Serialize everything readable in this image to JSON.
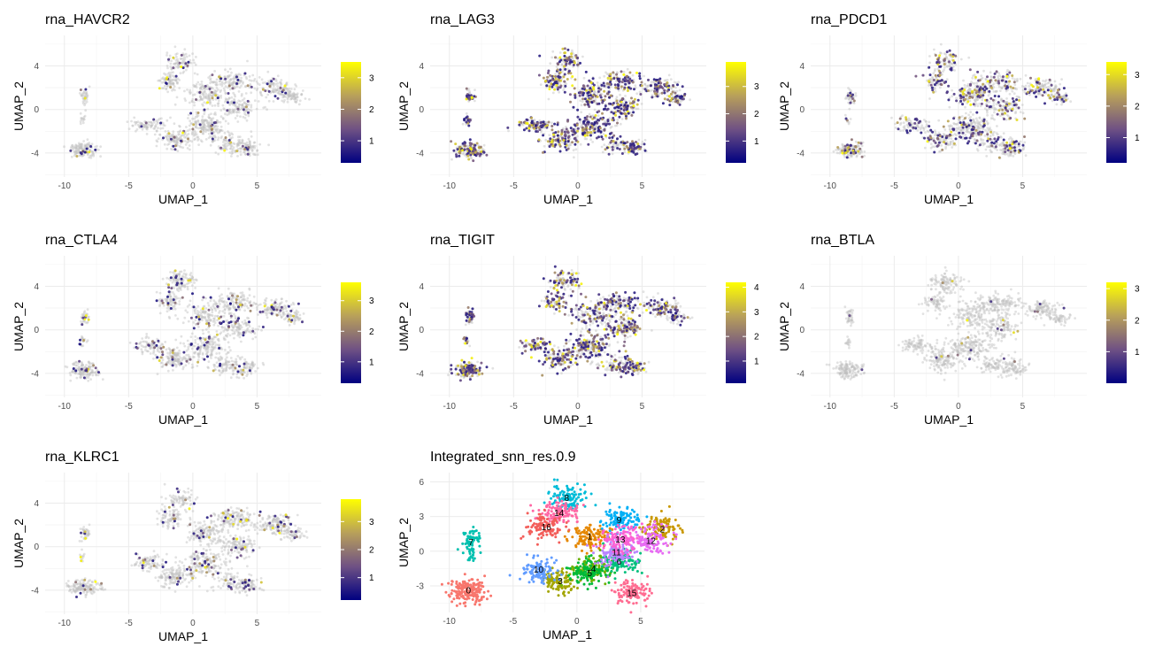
{
  "chart_data": [
    {
      "type": "scatter",
      "title": "rna_HAVCR2",
      "xlabel": "UMAP_1",
      "ylabel": "UMAP_2",
      "xlim": [
        -11.5,
        10
      ],
      "ylim": [
        -6.2,
        6.8
      ],
      "xticks": [
        -10,
        -5,
        0,
        5
      ],
      "yticks": [
        -4,
        0,
        4
      ],
      "grid": true,
      "colorbar": {
        "min": 0.3,
        "max": 3.5,
        "ticks": [
          1,
          2,
          3
        ],
        "colors": [
          "#000080",
          "#6f5184",
          "#b8a05a",
          "#ffff00"
        ]
      },
      "expression": {
        "fraction": 0.08,
        "low_color": "#bebebe"
      }
    },
    {
      "type": "scatter",
      "title": "rna_LAG3",
      "xlabel": "UMAP_1",
      "ylabel": "UMAP_2",
      "xlim": [
        -11.5,
        10
      ],
      "ylim": [
        -6.2,
        6.8
      ],
      "xticks": [
        -10,
        -5,
        0,
        5
      ],
      "yticks": [
        -4,
        0,
        4
      ],
      "grid": true,
      "colorbar": {
        "min": 0.2,
        "max": 3.9,
        "ticks": [
          1,
          2,
          3
        ],
        "colors": [
          "#000080",
          "#6f5184",
          "#b8a05a",
          "#ffff00"
        ]
      },
      "expression": {
        "fraction": 0.55,
        "low_color": "#bebebe"
      }
    },
    {
      "type": "scatter",
      "title": "rna_PDCD1",
      "xlabel": "UMAP_1",
      "ylabel": "UMAP_2",
      "xlim": [
        -11.5,
        10
      ],
      "ylim": [
        -6.2,
        6.8
      ],
      "xticks": [
        -10,
        -5,
        0,
        5
      ],
      "yticks": [
        -4,
        0,
        4
      ],
      "grid": true,
      "colorbar": {
        "min": 0.2,
        "max": 3.4,
        "ticks": [
          1,
          2,
          3
        ],
        "colors": [
          "#000080",
          "#6f5184",
          "#b8a05a",
          "#ffff00"
        ]
      },
      "expression": {
        "fraction": 0.28,
        "low_color": "#bebebe"
      }
    },
    {
      "type": "scatter",
      "title": "rna_CTLA4",
      "xlabel": "UMAP_1",
      "ylabel": "UMAP_2",
      "xlim": [
        -11.5,
        10
      ],
      "ylim": [
        -6.2,
        6.8
      ],
      "xticks": [
        -10,
        -5,
        0,
        5
      ],
      "yticks": [
        -4,
        0,
        4
      ],
      "grid": true,
      "colorbar": {
        "min": 0.3,
        "max": 3.6,
        "ticks": [
          1,
          2,
          3
        ],
        "colors": [
          "#000080",
          "#6f5184",
          "#b8a05a",
          "#ffff00"
        ]
      },
      "expression": {
        "fraction": 0.12,
        "low_color": "#bebebe"
      }
    },
    {
      "type": "scatter",
      "title": "rna_TIGIT",
      "xlabel": "UMAP_1",
      "ylabel": "UMAP_2",
      "xlim": [
        -11.5,
        10
      ],
      "ylim": [
        -6.2,
        6.8
      ],
      "xticks": [
        -10,
        -5,
        0,
        5
      ],
      "yticks": [
        -4,
        0,
        4
      ],
      "grid": true,
      "colorbar": {
        "min": 0.1,
        "max": 4.2,
        "ticks": [
          1,
          2,
          3,
          4
        ],
        "colors": [
          "#000080",
          "#6f5184",
          "#b8a05a",
          "#ffff00"
        ]
      },
      "expression": {
        "fraction": 0.5,
        "low_color": "#bebebe"
      }
    },
    {
      "type": "scatter",
      "title": "rna_BTLA",
      "xlabel": "UMAP_1",
      "ylabel": "UMAP_2",
      "xlim": [
        -11.5,
        10
      ],
      "ylim": [
        -6.2,
        6.8
      ],
      "xticks": [
        -10,
        -5,
        0,
        5
      ],
      "yticks": [
        -4,
        0,
        4
      ],
      "grid": true,
      "colorbar": {
        "min": 0.0,
        "max": 3.2,
        "ticks": [
          1,
          2,
          3
        ],
        "colors": [
          "#000080",
          "#6f5184",
          "#b8a05a",
          "#ffff00"
        ]
      },
      "expression": {
        "fraction": 0.02,
        "low_color": "#bebebe"
      }
    },
    {
      "type": "scatter",
      "title": "rna_KLRC1",
      "xlabel": "UMAP_1",
      "ylabel": "UMAP_2",
      "xlim": [
        -11.5,
        10
      ],
      "ylim": [
        -6.2,
        6.8
      ],
      "xticks": [
        -10,
        -5,
        0,
        5
      ],
      "yticks": [
        -4,
        0,
        4
      ],
      "grid": true,
      "colorbar": {
        "min": 0.2,
        "max": 3.8,
        "ticks": [
          1,
          2,
          3
        ],
        "colors": [
          "#000080",
          "#6f5184",
          "#b8a05a",
          "#ffff00"
        ]
      },
      "expression": {
        "fraction": 0.1,
        "low_color": "#bebebe"
      }
    },
    {
      "type": "scatter",
      "title": "Integrated_snn_res.0.9",
      "xlabel": "UMAP_1",
      "ylabel": "UMAP_2",
      "xlim": [
        -11.5,
        10
      ],
      "ylim": [
        -5.3,
        6.8
      ],
      "xticks": [
        -10,
        -5,
        0,
        5
      ],
      "yticks": [
        -3,
        0,
        3,
        6
      ],
      "grid": true,
      "clusters": [
        {
          "label": "0",
          "x": -8.5,
          "y": -3.4,
          "color": "#F8766D"
        },
        {
          "label": "1",
          "x": 1.0,
          "y": 1.3,
          "color": "#E58700"
        },
        {
          "label": "2",
          "x": 6.7,
          "y": 1.9,
          "color": "#C99800"
        },
        {
          "label": "3",
          "x": -1.3,
          "y": -2.6,
          "color": "#A3A500"
        },
        {
          "label": "4",
          "x": 1.3,
          "y": -1.5,
          "color": "#6BB100"
        },
        {
          "label": "5",
          "x": 1.0,
          "y": -1.9,
          "color": "#00BA38"
        },
        {
          "label": "6",
          "x": 3.3,
          "y": -0.9,
          "color": "#00BF7D"
        },
        {
          "label": "7",
          "x": -8.3,
          "y": 0.8,
          "color": "#00C0AF"
        },
        {
          "label": "8",
          "x": -0.8,
          "y": 4.6,
          "color": "#00BCD8"
        },
        {
          "label": "9",
          "x": 3.3,
          "y": 2.7,
          "color": "#00B0F6"
        },
        {
          "label": "10",
          "x": -3.0,
          "y": -1.6,
          "color": "#619CFF"
        },
        {
          "label": "11",
          "x": 3.1,
          "y": -0.1,
          "color": "#B983FF"
        },
        {
          "label": "12",
          "x": 5.8,
          "y": 0.9,
          "color": "#E76BF3"
        },
        {
          "label": "13",
          "x": 3.4,
          "y": 1.0,
          "color": "#FD61D1"
        },
        {
          "label": "14",
          "x": -1.4,
          "y": 3.3,
          "color": "#FF67A4"
        },
        {
          "label": "15",
          "x": 4.3,
          "y": -3.6,
          "color": "#FF6C91"
        },
        {
          "label": "16",
          "x": -2.4,
          "y": 2.1,
          "color": "#F35E5A"
        }
      ]
    }
  ]
}
